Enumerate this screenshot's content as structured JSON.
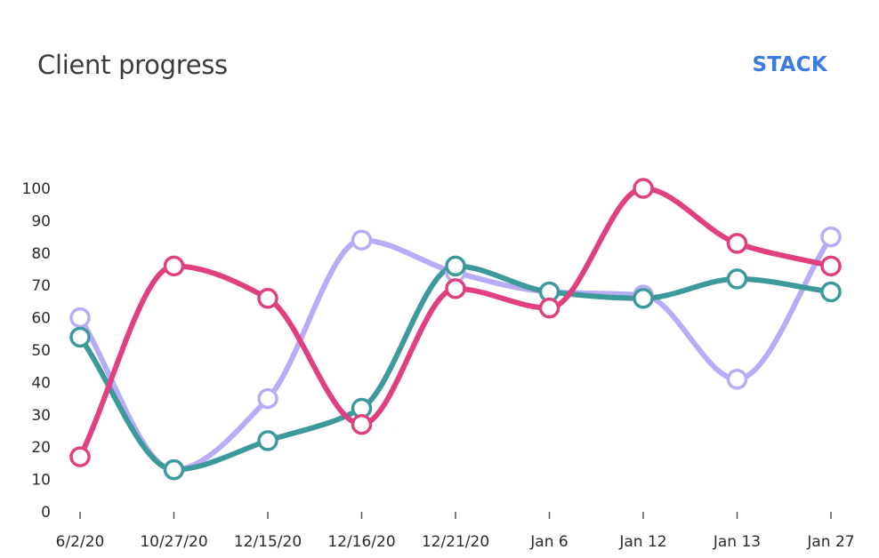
{
  "header": {
    "title": "Client progress",
    "stack_label": "STACK"
  },
  "chart_data": {
    "type": "line",
    "title": "Client progress",
    "xlabel": "",
    "ylabel": "",
    "categories": [
      "6/2/20",
      "10/27/20",
      "12/15/20",
      "12/16/20",
      "12/21/20",
      "Jan 6",
      "Jan 12",
      "Jan 13",
      "Jan 27"
    ],
    "ylim": [
      0,
      100
    ],
    "yticks": [
      0,
      10,
      20,
      30,
      40,
      50,
      60,
      70,
      80,
      90,
      100
    ],
    "grid": false,
    "legend": "none",
    "series": [
      {
        "color": "#b9acf6",
        "values": [
          60,
          13,
          35,
          84,
          74,
          68,
          67,
          41,
          85
        ]
      },
      {
        "color": "#3c9a9a",
        "values": [
          54,
          13,
          22,
          32,
          76,
          68,
          66,
          72,
          68
        ]
      },
      {
        "color": "#e0407f",
        "values": [
          17,
          76,
          66,
          27,
          69,
          63,
          100,
          83,
          76
        ]
      }
    ]
  }
}
